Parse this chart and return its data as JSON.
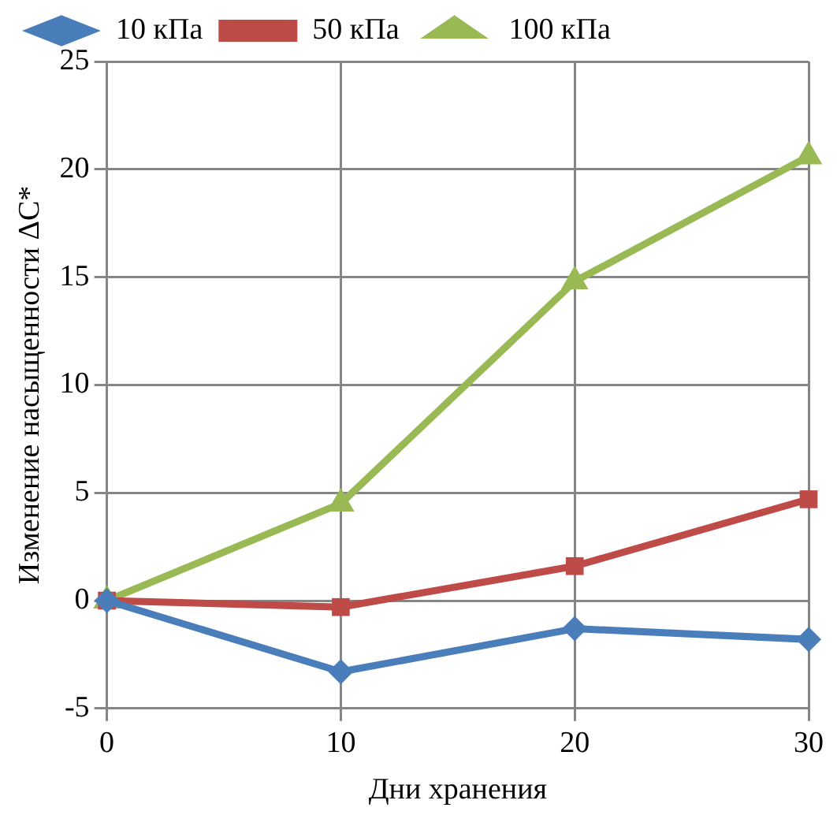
{
  "chart_data": {
    "type": "line",
    "xlabel": "Дни хранения",
    "ylabel": "Изменение насыщенности ΔC*",
    "x": [
      0,
      10,
      20,
      30
    ],
    "xlim": [
      0,
      30
    ],
    "xticks": [
      0,
      10,
      20,
      30
    ],
    "ylim": [
      -5,
      25
    ],
    "yticks": [
      -5,
      0,
      5,
      10,
      15,
      20,
      25
    ],
    "grid": true,
    "legend": "top",
    "line_style": "solid",
    "series": [
      {
        "name": "10 кПа",
        "color": "#4a7ebb",
        "marker": "diamond",
        "values": [
          0,
          -3.3,
          -1.3,
          -1.8
        ]
      },
      {
        "name": "50 кПа",
        "color": "#be4b48",
        "marker": "square",
        "values": [
          0,
          -0.3,
          1.6,
          4.7
        ]
      },
      {
        "name": "100 кПа",
        "color": "#98b954",
        "marker": "triangle",
        "values": [
          0,
          4.5,
          14.8,
          20.6
        ]
      }
    ]
  }
}
